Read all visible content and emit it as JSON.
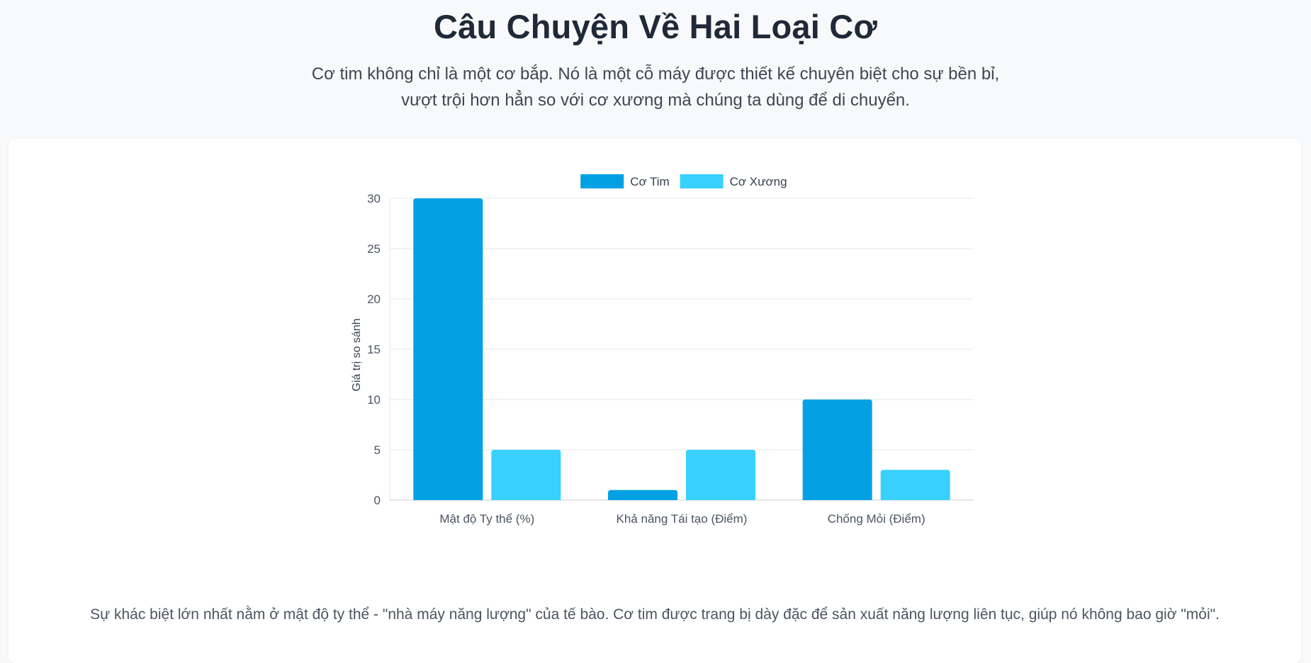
{
  "header": {
    "title": "Câu Chuyện Về Hai Loại Cơ",
    "subtitle": "Cơ tim không chỉ là một cơ bắp. Nó là một cỗ máy được thiết kế chuyên biệt cho sự bền bỉ, vượt trội hơn hẳn so với cơ xương mà chúng ta dùng để di chuyển."
  },
  "chart_data": {
    "type": "bar",
    "categories": [
      "Mật độ Ty thể (%)",
      "Khả năng Tái tạo (Điểm)",
      "Chống Mỏi (Điểm)"
    ],
    "series": [
      {
        "name": "Cơ Tim",
        "values": [
          30,
          1,
          10
        ],
        "color": "#03a1e4"
      },
      {
        "name": "Cơ Xương",
        "values": [
          5,
          5,
          3
        ],
        "color": "#38d1fe"
      }
    ],
    "ylabel": "Giá trị so sánh",
    "ylim": [
      0,
      30
    ],
    "yticks": [
      0,
      5,
      10,
      15,
      20,
      25,
      30
    ],
    "grid": true,
    "legend": "top-center"
  },
  "caption": "Sự khác biệt lớn nhất nằm ở mật độ ty thể - \"nhà máy năng lượng\" của tế bào. Cơ tim được trang bị dày đặc để sản xuất năng lượng liên tục, giúp nó không bao giờ \"mỏi\"."
}
